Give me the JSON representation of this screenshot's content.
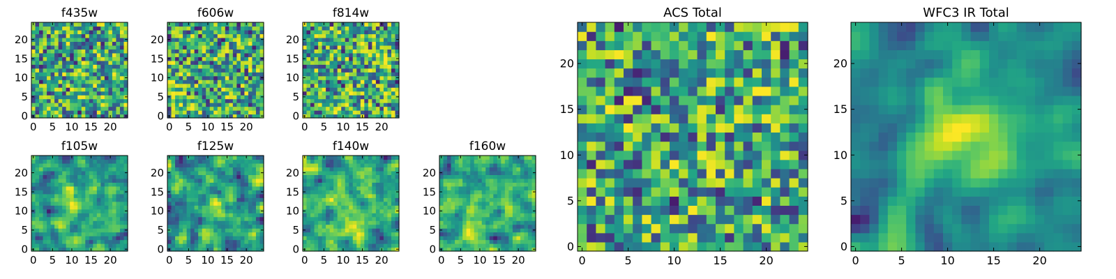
{
  "chart_data": [
    {
      "type": "heatmap",
      "title": "f435w",
      "size": 25,
      "seed": 101,
      "smoothing": 0,
      "center_boost": 0.0,
      "xticks": [
        0,
        5,
        10,
        15,
        20
      ],
      "yticks": [
        0,
        5,
        10,
        15,
        20
      ],
      "xlim": [
        0,
        24
      ],
      "ylim": [
        0,
        24
      ],
      "colormap": "viridis"
    },
    {
      "type": "heatmap",
      "title": "f606w",
      "size": 25,
      "seed": 202,
      "smoothing": 0,
      "center_boost": 0.0,
      "xticks": [
        0,
        5,
        10,
        15,
        20
      ],
      "yticks": [
        0,
        5,
        10,
        15,
        20
      ],
      "xlim": [
        0,
        24
      ],
      "ylim": [
        0,
        24
      ],
      "colormap": "viridis"
    },
    {
      "type": "heatmap",
      "title": "f814w",
      "size": 25,
      "seed": 303,
      "smoothing": 0,
      "center_boost": 0.0,
      "xticks": [
        0,
        5,
        10,
        15,
        20
      ],
      "yticks": [
        0,
        5,
        10,
        15,
        20
      ],
      "xlim": [
        0,
        24
      ],
      "ylim": [
        0,
        24
      ],
      "colormap": "viridis"
    },
    {
      "type": "heatmap",
      "title": "f105w",
      "size": 25,
      "seed": 404,
      "smoothing": 1,
      "center_boost": 0.15,
      "xticks": [
        0,
        5,
        10,
        15,
        20
      ],
      "yticks": [
        0,
        5,
        10,
        15,
        20
      ],
      "xlim": [
        0,
        24
      ],
      "ylim": [
        0,
        24
      ],
      "colormap": "viridis"
    },
    {
      "type": "heatmap",
      "title": "f125w",
      "size": 25,
      "seed": 505,
      "smoothing": 1,
      "center_boost": 0.1,
      "xticks": [
        0,
        5,
        10,
        15,
        20
      ],
      "yticks": [
        0,
        5,
        10,
        15,
        20
      ],
      "xlim": [
        0,
        24
      ],
      "ylim": [
        0,
        24
      ],
      "colormap": "viridis"
    },
    {
      "type": "heatmap",
      "title": "f140w",
      "size": 25,
      "seed": 606,
      "smoothing": 1,
      "center_boost": 0.1,
      "xticks": [
        0,
        5,
        10,
        15,
        20
      ],
      "yticks": [
        0,
        5,
        10,
        15,
        20
      ],
      "xlim": [
        0,
        24
      ],
      "ylim": [
        0,
        24
      ],
      "colormap": "viridis"
    },
    {
      "type": "heatmap",
      "title": "f160w",
      "size": 25,
      "seed": 707,
      "smoothing": 1,
      "center_boost": 0.15,
      "xticks": [
        0,
        5,
        10,
        15,
        20
      ],
      "yticks": [
        0,
        5,
        10,
        15,
        20
      ],
      "xlim": [
        0,
        24
      ],
      "ylim": [
        0,
        24
      ],
      "colormap": "viridis"
    },
    {
      "type": "heatmap",
      "title": "ACS Total",
      "size": 25,
      "seed": 808,
      "smoothing": 0,
      "center_boost": 0.0,
      "xticks": [
        0,
        5,
        10,
        15,
        20
      ],
      "yticks": [
        0,
        5,
        10,
        15,
        20
      ],
      "xlim": [
        0,
        24
      ],
      "ylim": [
        0,
        24
      ],
      "colormap": "viridis"
    },
    {
      "type": "heatmap",
      "title": "WFC3 IR Total",
      "size": 25,
      "seed": 909,
      "smoothing": 2,
      "center_boost": 0.45,
      "xticks": [
        0,
        5,
        10,
        15,
        20
      ],
      "yticks": [
        0,
        5,
        10,
        15,
        20
      ],
      "xlim": [
        0,
        24
      ],
      "ylim": [
        0,
        24
      ],
      "colormap": "viridis"
    }
  ]
}
